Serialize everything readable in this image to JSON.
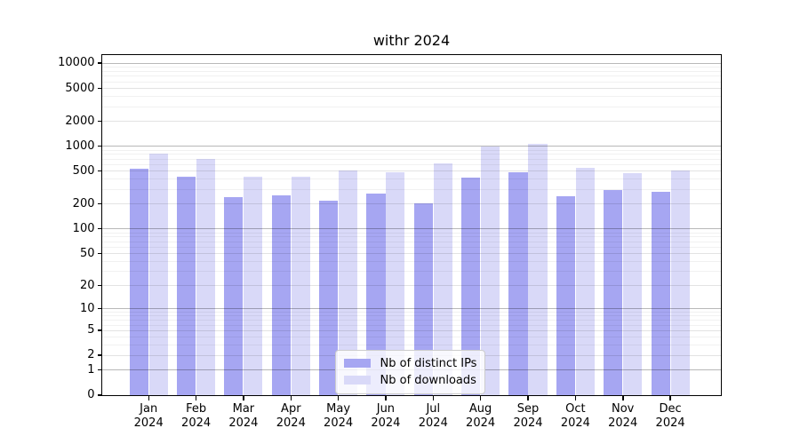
{
  "title": "withr 2024",
  "chart_data": {
    "type": "bar",
    "title": "withr 2024",
    "categories": [
      "Jan",
      "Feb",
      "Mar",
      "Apr",
      "May",
      "Jun",
      "Jul",
      "Aug",
      "Sep",
      "Oct",
      "Nov",
      "Dec"
    ],
    "category_year": "2024",
    "series": [
      {
        "name": "Nb of distinct IPs",
        "color": "#a6a6f2",
        "values": [
          535,
          427,
          240,
          252,
          216,
          263,
          202,
          417,
          478,
          246,
          290,
          276
        ]
      },
      {
        "name": "Nb of downloads",
        "color": "#d9d9f8",
        "values": [
          800,
          700,
          420,
          420,
          500,
          478,
          612,
          985,
          1050,
          538,
          463,
          500
        ]
      }
    ],
    "yscale": "log1p",
    "ylim": [
      0,
      12600
    ],
    "yticks": [
      0,
      1,
      2,
      5,
      10,
      20,
      50,
      100,
      200,
      500,
      1000,
      2000,
      5000,
      10000
    ],
    "grid": true,
    "legend_position": "lower center"
  },
  "colors": {
    "spine": "#000000",
    "background": "#ffffff",
    "grid_decade": "rgba(0,0,0,0.28)",
    "grid_sub": "rgba(0,0,0,0.11)",
    "grid_minor": "rgba(0,0,0,0.055)"
  }
}
